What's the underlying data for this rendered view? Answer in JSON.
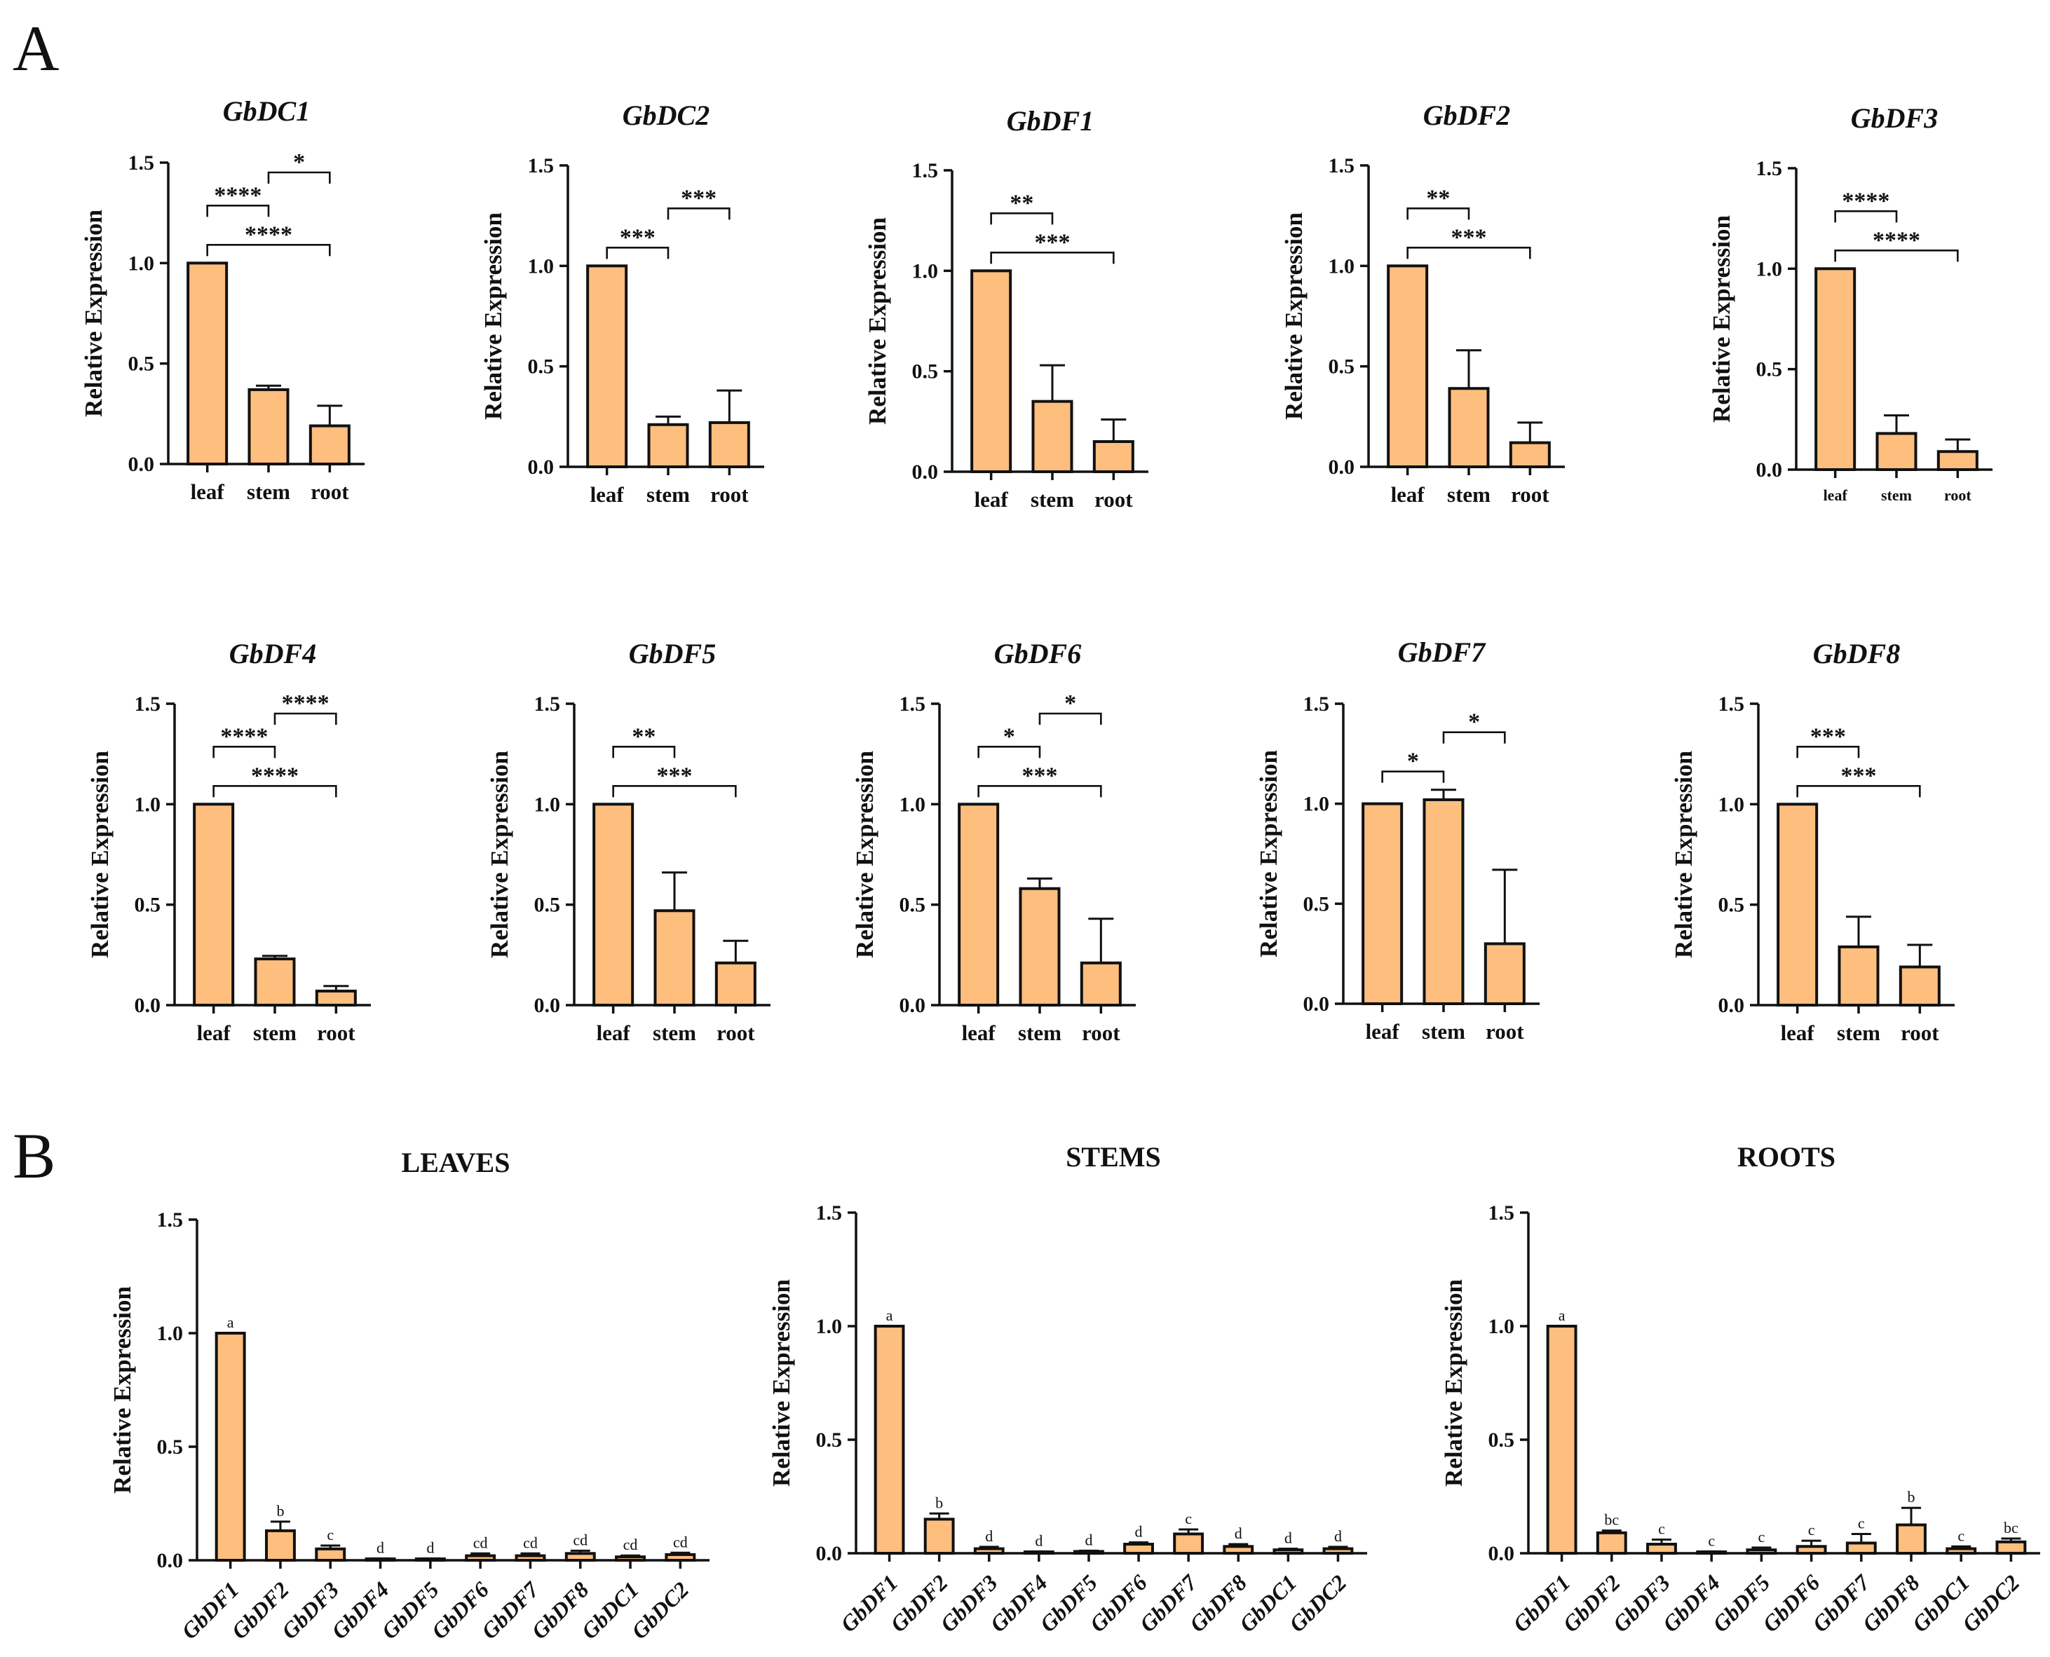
{
  "figure": {
    "panel_labels": [
      "A",
      "B"
    ],
    "bar_color": "#FDBE7E",
    "stroke_color": "#111111"
  },
  "chart_data": [
    {
      "id": "gbdc1",
      "type": "bar",
      "title": "GbDC1",
      "ylabel": "Relative Expression",
      "ylim": [
        0,
        1.5
      ],
      "yticks": [
        "0.0",
        "0.5",
        "1.0",
        "1.5"
      ],
      "categories": [
        "leaf",
        "stem",
        "root"
      ],
      "values": [
        1.0,
        0.37,
        0.19
      ],
      "errors": [
        0,
        0.02,
        0.1
      ],
      "brackets": [
        {
          "from": 0,
          "to": 2,
          "label": "****"
        },
        {
          "from": 0,
          "to": 1,
          "label": "****"
        },
        {
          "from": 1,
          "to": 2,
          "label": "*"
        }
      ]
    },
    {
      "id": "gbdc2",
      "type": "bar",
      "title": "GbDC2",
      "ylabel": "Relative Expression",
      "ylim": [
        0,
        1.5
      ],
      "yticks": [
        "0.0",
        "0.5",
        "1.0",
        "1.5"
      ],
      "categories": [
        "leaf",
        "stem",
        "root"
      ],
      "values": [
        1.0,
        0.21,
        0.22
      ],
      "errors": [
        0,
        0.04,
        0.16
      ],
      "brackets": [
        {
          "from": 0,
          "to": 1,
          "label": "***"
        },
        {
          "from": 1,
          "to": 2,
          "label": "***"
        }
      ]
    },
    {
      "id": "gbdf1",
      "type": "bar",
      "title": "GbDF1",
      "ylabel": "Relative Expression",
      "ylim": [
        0,
        1.5
      ],
      "yticks": [
        "0.0",
        "0.5",
        "1.0",
        "1.5"
      ],
      "categories": [
        "leaf",
        "stem",
        "root"
      ],
      "values": [
        1.0,
        0.35,
        0.15
      ],
      "errors": [
        0,
        0.18,
        0.11
      ],
      "brackets": [
        {
          "from": 0,
          "to": 2,
          "label": "***"
        },
        {
          "from": 0,
          "to": 1,
          "label": "**"
        }
      ]
    },
    {
      "id": "gbdf2",
      "type": "bar",
      "title": "GbDF2",
      "ylabel": "Relative Expression",
      "ylim": [
        0,
        1.5
      ],
      "yticks": [
        "0.0",
        "0.5",
        "1.0",
        "1.5"
      ],
      "categories": [
        "leaf",
        "stem",
        "root"
      ],
      "values": [
        1.0,
        0.39,
        0.12
      ],
      "errors": [
        0,
        0.19,
        0.1
      ],
      "brackets": [
        {
          "from": 0,
          "to": 2,
          "label": "***"
        },
        {
          "from": 0,
          "to": 1,
          "label": "**"
        }
      ]
    },
    {
      "id": "gbdf3",
      "type": "bar",
      "title": "GbDF3",
      "ylabel": "Relative Expression",
      "ylim": [
        0,
        1.5
      ],
      "yticks": [
        "0.0",
        "0.5",
        "1.0",
        "1.5"
      ],
      "categories": [
        "leaf",
        "stem",
        "root"
      ],
      "values": [
        1.0,
        0.18,
        0.09
      ],
      "errors": [
        0,
        0.09,
        0.06
      ],
      "small_ticks": true,
      "brackets": [
        {
          "from": 0,
          "to": 2,
          "label": "****"
        },
        {
          "from": 0,
          "to": 1,
          "label": "****"
        }
      ]
    },
    {
      "id": "gbdf4",
      "type": "bar",
      "title": "GbDF4",
      "ylabel": "Relative Expression",
      "ylim": [
        0,
        1.5
      ],
      "yticks": [
        "0.0",
        "0.5",
        "1.0",
        "1.5"
      ],
      "categories": [
        "leaf",
        "stem",
        "root"
      ],
      "values": [
        1.0,
        0.23,
        0.07
      ],
      "errors": [
        0,
        0.015,
        0.025
      ],
      "brackets": [
        {
          "from": 0,
          "to": 2,
          "label": "****"
        },
        {
          "from": 0,
          "to": 1,
          "label": "****"
        },
        {
          "from": 1,
          "to": 2,
          "label": "****"
        }
      ]
    },
    {
      "id": "gbdf5",
      "type": "bar",
      "title": "GbDF5",
      "ylabel": "Relative Expression",
      "ylim": [
        0,
        1.5
      ],
      "yticks": [
        "0.0",
        "0.5",
        "1.0",
        "1.5"
      ],
      "categories": [
        "leaf",
        "stem",
        "root"
      ],
      "values": [
        1.0,
        0.47,
        0.21
      ],
      "errors": [
        0,
        0.19,
        0.11
      ],
      "brackets": [
        {
          "from": 0,
          "to": 2,
          "label": "***"
        },
        {
          "from": 0,
          "to": 1,
          "label": "**"
        }
      ]
    },
    {
      "id": "gbdf6",
      "type": "bar",
      "title": "GbDF6",
      "ylabel": "Relative Expression",
      "ylim": [
        0,
        1.5
      ],
      "yticks": [
        "0.0",
        "0.5",
        "1.0",
        "1.5"
      ],
      "categories": [
        "leaf",
        "stem",
        "root"
      ],
      "values": [
        1.0,
        0.58,
        0.21
      ],
      "errors": [
        0,
        0.05,
        0.22
      ],
      "brackets": [
        {
          "from": 0,
          "to": 2,
          "label": "***"
        },
        {
          "from": 0,
          "to": 1,
          "label": "*"
        },
        {
          "from": 1,
          "to": 2,
          "label": "*"
        }
      ]
    },
    {
      "id": "gbdf7",
      "type": "bar",
      "title": "GbDF7",
      "ylabel": "Relative Expression",
      "ylim": [
        0,
        1.5
      ],
      "yticks": [
        "0.0",
        "0.5",
        "1.0",
        "1.5"
      ],
      "categories": [
        "leaf",
        "stem",
        "root"
      ],
      "values": [
        1.0,
        1.02,
        0.3
      ],
      "errors": [
        0,
        0.05,
        0.37
      ],
      "brackets": [
        {
          "from": 0,
          "to": 1,
          "label": "*"
        },
        {
          "from": 1,
          "to": 2,
          "label": "*"
        }
      ]
    },
    {
      "id": "gbdf8",
      "type": "bar",
      "title": "GbDF8",
      "ylabel": "Relative Expression",
      "ylim": [
        0,
        1.5
      ],
      "yticks": [
        "0.0",
        "0.5",
        "1.0",
        "1.5"
      ],
      "categories": [
        "leaf",
        "stem",
        "root"
      ],
      "values": [
        1.0,
        0.29,
        0.19
      ],
      "errors": [
        0,
        0.15,
        0.11
      ],
      "brackets": [
        {
          "from": 0,
          "to": 2,
          "label": "***"
        },
        {
          "from": 0,
          "to": 1,
          "label": "***"
        }
      ]
    },
    {
      "id": "leaves",
      "type": "bar",
      "title": "LEAVES",
      "ylabel": "Relative Expression",
      "ylim": [
        0,
        1.5
      ],
      "yticks": [
        "0.0",
        "0.5",
        "1.0",
        "1.5"
      ],
      "categories": [
        "GbDF1",
        "GbDF2",
        "GbDF3",
        "GbDF4",
        "GbDF5",
        "GbDF6",
        "GbDF7",
        "GbDF8",
        "GbDC1",
        "GbDC2"
      ],
      "values": [
        1.0,
        0.13,
        0.05,
        0.005,
        0.005,
        0.02,
        0.02,
        0.03,
        0.015,
        0.025
      ],
      "errors": [
        0,
        0.04,
        0.015,
        0.003,
        0.003,
        0.01,
        0.01,
        0.012,
        0.006,
        0.008
      ],
      "letters": [
        "a",
        "b",
        "c",
        "d",
        "d",
        "cd",
        "cd",
        "cd",
        "cd",
        "cd"
      ]
    },
    {
      "id": "stems",
      "type": "bar",
      "title": "STEMS",
      "ylabel": "Relative Expression",
      "ylim": [
        0,
        1.5
      ],
      "yticks": [
        "0.0",
        "0.5",
        "1.0",
        "1.5"
      ],
      "categories": [
        "GbDF1",
        "GbDF2",
        "GbDF3",
        "GbDF4",
        "GbDF5",
        "GbDF6",
        "GbDF7",
        "GbDF8",
        "GbDC1",
        "GbDC2"
      ],
      "values": [
        1.0,
        0.15,
        0.02,
        0.005,
        0.008,
        0.04,
        0.085,
        0.03,
        0.015,
        0.02
      ],
      "errors": [
        0,
        0.025,
        0.008,
        0.003,
        0.003,
        0.008,
        0.02,
        0.01,
        0.005,
        0.008
      ],
      "letters": [
        "a",
        "b",
        "d",
        "d",
        "d",
        "d",
        "c",
        "d",
        "d",
        "d"
      ]
    },
    {
      "id": "roots",
      "type": "bar",
      "title": "ROOTS",
      "ylabel": "Relative Expression",
      "ylim": [
        0,
        1.5
      ],
      "yticks": [
        "0.0",
        "0.5",
        "1.0",
        "1.5"
      ],
      "categories": [
        "GbDF1",
        "GbDF2",
        "GbDF3",
        "GbDF4",
        "GbDF5",
        "GbDF6",
        "GbDF7",
        "GbDF8",
        "GbDC1",
        "GbDC2"
      ],
      "values": [
        1.0,
        0.09,
        0.04,
        0.005,
        0.015,
        0.03,
        0.045,
        0.125,
        0.02,
        0.05
      ],
      "errors": [
        0,
        0.01,
        0.02,
        0.003,
        0.01,
        0.025,
        0.04,
        0.075,
        0.01,
        0.015
      ],
      "letters": [
        "a",
        "bc",
        "c",
        "c",
        "c",
        "c",
        "c",
        "b",
        "c",
        "bc"
      ]
    }
  ]
}
